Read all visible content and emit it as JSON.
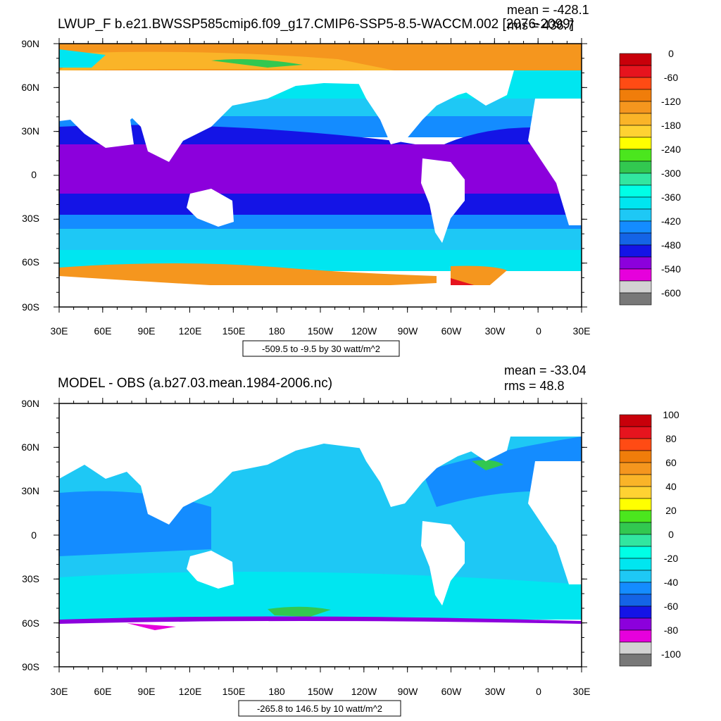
{
  "panels": [
    {
      "title": "LWUP_F b.e21.BWSSP585cmip6.f09_g17.CMIP6-SSP5-8.5-WACCM.002 [2076-2099]",
      "mean": "mean = -428.1",
      "rms": "rms = 436.7",
      "contour_info": "-509.5 to -9.5 by 30 watt/m^2",
      "lat_labels": [
        "90N",
        "60N",
        "30N",
        "0",
        "30S",
        "60S",
        "90S"
      ],
      "lon_labels": [
        "30E",
        "60E",
        "90E",
        "120E",
        "150E",
        "180",
        "150W",
        "120W",
        "90W",
        "60W",
        "30W",
        "0",
        "30E"
      ],
      "colorbar": {
        "labels": [
          "0",
          "-60",
          "-120",
          "-180",
          "-240",
          "-300",
          "-360",
          "-420",
          "-480",
          "-540",
          "-600"
        ],
        "colors": [
          "#c8000a",
          "#e6141e",
          "#ff4b14",
          "#f07d0a",
          "#f5961e",
          "#fab428",
          "#ffd232",
          "#ffff00",
          "#4be61e",
          "#32c850",
          "#32e6a0",
          "#00ffe6",
          "#00e6f0",
          "#1ec8f5",
          "#148cff",
          "#1464e6",
          "#1414e6",
          "#8c00dc",
          "#e600dc",
          "#d2d2d2",
          "#787878"
        ]
      }
    },
    {
      "title": "MODEL - OBS (a.b27.03.mean.1984-2006.nc)",
      "mean": "mean = -33.04",
      "rms": "rms = 48.8",
      "contour_info": "-265.8 to 146.5 by 10 watt/m^2",
      "lat_labels": [
        "90N",
        "60N",
        "30N",
        "0",
        "30S",
        "60S",
        "90S"
      ],
      "lon_labels": [
        "30E",
        "60E",
        "90E",
        "120E",
        "150E",
        "180",
        "150W",
        "120W",
        "90W",
        "60W",
        "30W",
        "0",
        "30E"
      ],
      "colorbar": {
        "labels": [
          "100",
          "80",
          "60",
          "40",
          "20",
          "0",
          "-20",
          "-40",
          "-60",
          "-80",
          "-100"
        ],
        "colors": [
          "#c8000a",
          "#e6141e",
          "#ff4b14",
          "#f07d0a",
          "#f5961e",
          "#fab428",
          "#ffd232",
          "#ffff00",
          "#4be61e",
          "#32c850",
          "#32e6a0",
          "#00ffe6",
          "#00e6f0",
          "#1ec8f5",
          "#148cff",
          "#1464e6",
          "#1414e6",
          "#8c00dc",
          "#e600dc",
          "#d2d2d2",
          "#787878"
        ]
      }
    }
  ],
  "map_colors": {
    "ocean_purple": "#8c00dc",
    "ocean_blue": "#1414e6",
    "ocean_mid": "#148cff",
    "ocean_light": "#1ec8f5",
    "ocean_cyan": "#00e6f0",
    "ice_orange": "#f5961e",
    "ice_yellow": "#fab428",
    "land": "#ffffff"
  }
}
